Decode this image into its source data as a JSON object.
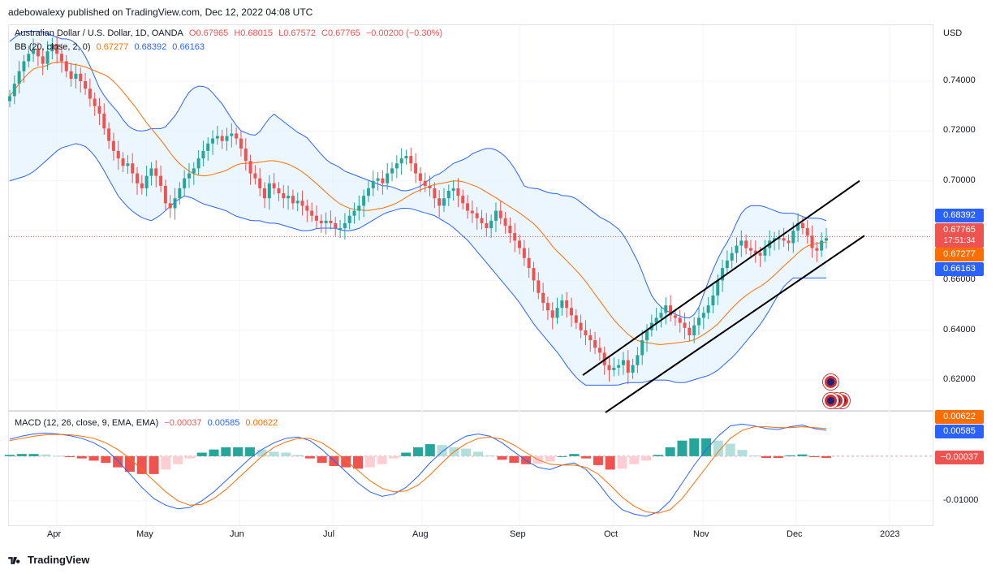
{
  "publisher": "adebowalexy published on TradingView.com, Dec 12, 2022 04:08 UTC",
  "footer_brand": "TradingView",
  "currency": "USD",
  "legend": {
    "symbol": "Australian Dollar / U.S. Dollar, 1D, OANDA",
    "open": "O0.67965",
    "high": "H0.68015",
    "low": "L0.67572",
    "close": "C0.67765",
    "change": "−0.00200 (−0.30%)",
    "bb_label": "BB (20, close, 2, 0)",
    "bb_mid": "0.67277",
    "bb_up": "0.68392",
    "bb_lo": "0.66163",
    "macd_label": "MACD (12, 26, close, 9, EMA, EMA)",
    "macd_hist": "−0.00037",
    "macd_line": "0.00585",
    "macd_signal": "0.00622"
  },
  "price_tags": {
    "upper": "0.68392",
    "last": "0.67765",
    "countdown": "17:51:34",
    "mid": "0.67277",
    "lower": "0.66163",
    "macd_signal": "0.00622",
    "macd_line": "0.00585",
    "macd_hist": "−0.00037"
  },
  "colors": {
    "up": "#26a69a",
    "down": "#ef5350",
    "bb_band": "#2962ff",
    "bb_basis": "#ff6d00",
    "band_fill": "#e3f2fd",
    "hist_up_strong": "#26a69a",
    "hist_up_weak": "#b2dfdb",
    "hist_down_strong": "#ef5350",
    "hist_down_weak": "#ffcdd2",
    "channel": "#000000"
  },
  "chart_data": [
    {
      "type": "candlestick",
      "title": "Australian Dollar / U.S. Dollar, 1D, OANDA",
      "y_ticks": [
        "0.74000",
        "0.72000",
        "0.70000",
        "0.68000",
        "0.66000",
        "0.64000",
        "0.62000"
      ],
      "ylim": [
        0.608,
        0.7625
      ],
      "x_ticks": [
        "Apr",
        "May",
        "Jun",
        "Jul",
        "Aug",
        "Sep",
        "Oct",
        "Nov",
        "Dec",
        "2023"
      ],
      "close_path": [
        0.734,
        0.739,
        0.744,
        0.748,
        0.751,
        0.753,
        0.75,
        0.747,
        0.752,
        0.755,
        0.751,
        0.748,
        0.744,
        0.741,
        0.743,
        0.74,
        0.737,
        0.733,
        0.73,
        0.727,
        0.721,
        0.716,
        0.712,
        0.709,
        0.706,
        0.707,
        0.703,
        0.699,
        0.697,
        0.702,
        0.705,
        0.702,
        0.698,
        0.691,
        0.689,
        0.693,
        0.697,
        0.701,
        0.703,
        0.705,
        0.709,
        0.712,
        0.715,
        0.717,
        0.718,
        0.716,
        0.718,
        0.719,
        0.717,
        0.713,
        0.708,
        0.703,
        0.701,
        0.697,
        0.693,
        0.699,
        0.697,
        0.695,
        0.693,
        0.694,
        0.691,
        0.692,
        0.69,
        0.688,
        0.686,
        0.684,
        0.683,
        0.684,
        0.683,
        0.681,
        0.681,
        0.683,
        0.686,
        0.688,
        0.69,
        0.694,
        0.697,
        0.7,
        0.701,
        0.699,
        0.703,
        0.705,
        0.707,
        0.709,
        0.71,
        0.707,
        0.703,
        0.7,
        0.698,
        0.697,
        0.693,
        0.69,
        0.693,
        0.696,
        0.697,
        0.694,
        0.691,
        0.688,
        0.687,
        0.685,
        0.683,
        0.681,
        0.684,
        0.688,
        0.685,
        0.682,
        0.679,
        0.676,
        0.673,
        0.669,
        0.665,
        0.66,
        0.655,
        0.651,
        0.648,
        0.645,
        0.649,
        0.652,
        0.649,
        0.646,
        0.643,
        0.64,
        0.638,
        0.636,
        0.633,
        0.631,
        0.626,
        0.624,
        0.625,
        0.626,
        0.628,
        0.623,
        0.626,
        0.63,
        0.636,
        0.64,
        0.643,
        0.645,
        0.647,
        0.65,
        0.646,
        0.645,
        0.643,
        0.641,
        0.638,
        0.642,
        0.645,
        0.647,
        0.65,
        0.654,
        0.66,
        0.665,
        0.668,
        0.671,
        0.674,
        0.676,
        0.673,
        0.672,
        0.671,
        0.67,
        0.673,
        0.676,
        0.677,
        0.677,
        0.676,
        0.675,
        0.68,
        0.683,
        0.681,
        0.678,
        0.673,
        0.672,
        0.676,
        0.677
      ],
      "bb_upper": [
        0.756,
        0.758,
        0.76,
        0.76,
        0.76,
        0.76,
        0.759,
        0.758,
        0.757,
        0.757,
        0.756,
        0.753,
        0.749,
        0.743,
        0.737,
        0.733,
        0.73,
        0.727,
        0.723,
        0.721,
        0.72,
        0.72,
        0.721,
        0.721,
        0.721,
        0.724,
        0.727,
        0.732,
        0.736,
        0.738,
        0.738,
        0.737,
        0.734,
        0.731,
        0.727,
        0.723,
        0.72,
        0.719,
        0.718,
        0.72,
        0.724,
        0.727,
        0.725,
        0.723,
        0.721,
        0.719,
        0.718,
        0.715,
        0.712,
        0.709,
        0.707,
        0.706,
        0.704,
        0.703,
        0.702,
        0.701,
        0.7,
        0.699,
        0.698,
        0.698,
        0.697,
        0.696,
        0.696,
        0.697,
        0.698,
        0.7,
        0.702,
        0.703,
        0.705,
        0.707,
        0.708,
        0.709,
        0.711,
        0.712,
        0.713,
        0.713,
        0.712,
        0.71,
        0.707,
        0.703,
        0.698,
        0.697,
        0.697,
        0.696,
        0.695,
        0.695,
        0.694,
        0.694,
        0.693,
        0.691,
        0.689,
        0.687,
        0.685,
        0.684,
        0.682,
        0.68,
        0.676,
        0.671,
        0.666,
        0.659,
        0.653,
        0.65,
        0.648,
        0.647,
        0.646,
        0.645,
        0.645,
        0.648,
        0.655,
        0.662,
        0.668,
        0.673,
        0.677,
        0.683,
        0.688,
        0.69,
        0.69,
        0.69,
        0.689,
        0.688,
        0.687,
        0.687,
        0.687,
        0.686,
        0.685,
        0.685,
        0.685,
        0.684
      ],
      "bb_lower": [
        0.7,
        0.701,
        0.702,
        0.704,
        0.707,
        0.71,
        0.713,
        0.714,
        0.715,
        0.714,
        0.711,
        0.706,
        0.7,
        0.694,
        0.69,
        0.687,
        0.685,
        0.684,
        0.686,
        0.689,
        0.692,
        0.694,
        0.693,
        0.691,
        0.69,
        0.689,
        0.688,
        0.686,
        0.685,
        0.684,
        0.684,
        0.683,
        0.683,
        0.682,
        0.681,
        0.68,
        0.68,
        0.681,
        0.681,
        0.681,
        0.68,
        0.68,
        0.681,
        0.683,
        0.685,
        0.687,
        0.688,
        0.689,
        0.689,
        0.688,
        0.687,
        0.686,
        0.684,
        0.682,
        0.679,
        0.676,
        0.672,
        0.668,
        0.664,
        0.66,
        0.656,
        0.652,
        0.647,
        0.642,
        0.638,
        0.634,
        0.63,
        0.625,
        0.621,
        0.618,
        0.618,
        0.618,
        0.618,
        0.618,
        0.619,
        0.619,
        0.619,
        0.62,
        0.62,
        0.62,
        0.619,
        0.619,
        0.62,
        0.621,
        0.622,
        0.624,
        0.627,
        0.63,
        0.634,
        0.638,
        0.642,
        0.647,
        0.653,
        0.658,
        0.661,
        0.661,
        0.661,
        0.661,
        0.661
      ],
      "bb_basis_start": 0.734,
      "channel": {
        "upper_line": [
          {
            "date": "Sep 26",
            "value": 0.622
          },
          {
            "date": "Dec 23",
            "value": 0.7
          }
        ],
        "lower_line": [
          {
            "date": "Oct 3",
            "value": 0.607
          },
          {
            "date": "Dec 26",
            "value": 0.678
          }
        ]
      }
    },
    {
      "type": "line+bar",
      "title": "MACD (12, 26, close, 9, EMA, EMA)",
      "y_ticks": [
        "-0.01000"
      ],
      "ylim": [
        -0.0155,
        0.01
      ],
      "macd_line": [
        0.0038,
        0.0045,
        0.005,
        0.0052,
        0.005,
        0.0046,
        0.004,
        0.003,
        0.0015,
        -0.001,
        -0.004,
        -0.007,
        -0.0095,
        -0.011,
        -0.0118,
        -0.0115,
        -0.01,
        -0.008,
        -0.0055,
        -0.003,
        -0.0005,
        0.0015,
        0.003,
        0.004,
        0.0043,
        0.0035,
        0.0015,
        -0.001,
        -0.0035,
        -0.006,
        -0.008,
        -0.009,
        -0.0085,
        -0.007,
        -0.0045,
        -0.0015,
        0.001,
        0.003,
        0.0045,
        0.005,
        0.0045,
        0.003,
        0.001,
        -0.001,
        -0.0025,
        -0.003,
        -0.002,
        -0.0015,
        -0.003,
        -0.006,
        -0.0095,
        -0.012,
        -0.013,
        -0.0135,
        -0.0125,
        -0.01,
        -0.006,
        -0.002,
        0.0015,
        0.0045,
        0.0068,
        0.0072,
        0.0068,
        0.0062,
        0.006,
        0.0066,
        0.007,
        0.0062,
        0.0058
      ],
      "signal_line": [
        0.0035,
        0.004,
        0.0045,
        0.0048,
        0.0049,
        0.0048,
        0.0045,
        0.004,
        0.003,
        0.0015,
        -0.0005,
        -0.003,
        -0.0055,
        -0.008,
        -0.01,
        -0.011,
        -0.0108,
        -0.0095,
        -0.0075,
        -0.005,
        -0.0025,
        0.0,
        0.002,
        0.0032,
        0.004,
        0.004,
        0.003,
        0.0012,
        -0.001,
        -0.0032,
        -0.0055,
        -0.0072,
        -0.008,
        -0.0078,
        -0.0065,
        -0.0042,
        -0.0015,
        0.001,
        0.0028,
        0.004,
        0.0043,
        0.0038,
        0.0025,
        0.0008,
        -0.0008,
        -0.0018,
        -0.002,
        -0.002,
        -0.0025,
        -0.004,
        -0.0065,
        -0.0092,
        -0.0112,
        -0.0125,
        -0.0128,
        -0.012,
        -0.0095,
        -0.006,
        -0.0025,
        0.001,
        0.004,
        0.0058,
        0.0066,
        0.0066,
        0.0064,
        0.0064,
        0.0066,
        0.0064,
        0.0062
      ],
      "histogram": [
        0.0003,
        0.0005,
        0.0005,
        0.0004,
        0.0001,
        -0.0002,
        -0.0005,
        -0.001,
        -0.0015,
        -0.0025,
        -0.0035,
        -0.004,
        -0.004,
        -0.003,
        -0.0018,
        -0.0005,
        0.0008,
        0.0015,
        0.002,
        0.002,
        0.002,
        0.0015,
        0.001,
        0.0008,
        0.0003,
        -0.0005,
        -0.0015,
        -0.0022,
        -0.0025,
        -0.0028,
        -0.0025,
        -0.0018,
        -0.0005,
        0.0008,
        0.002,
        0.0027,
        0.0025,
        0.002,
        0.0017,
        0.001,
        0.0002,
        -0.0008,
        -0.0015,
        -0.0018,
        -0.0017,
        -0.0012,
        0.0,
        0.0005,
        -0.0005,
        -0.002,
        -0.003,
        -0.0028,
        -0.0018,
        -0.001,
        0.0003,
        0.002,
        0.0035,
        0.004,
        0.004,
        0.0035,
        0.0028,
        0.0014,
        0.0002,
        -0.0004,
        -0.0004,
        0.0002,
        0.0004,
        -0.0002,
        -0.0004
      ]
    }
  ]
}
